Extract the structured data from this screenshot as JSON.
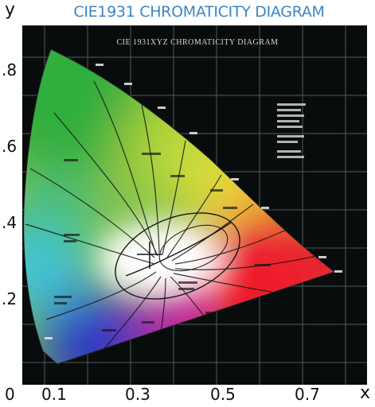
{
  "title": "CIE1931 CHROMATICITY DIAGRAM",
  "inner_title": "CIE 1931XYZ CHROMATICITY DIAGRAM",
  "axes": {
    "y_label": "y",
    "x_label": "x",
    "y_ticks": [
      ".8",
      ".6",
      ".4",
      ".2"
    ],
    "x_ticks": [
      "0",
      "0.1",
      "0.3",
      "0.5",
      "0.7"
    ]
  },
  "colors": {
    "background": "#090c0c",
    "title": "#3a86c6",
    "grid": "#4f5a5a",
    "green": "#2fae3c",
    "yellow": "#f3e33a",
    "red": "#e8202a",
    "magenta": "#d61f7a",
    "blue": "#2a2fc7",
    "cyan": "#3fc5e8"
  }
}
